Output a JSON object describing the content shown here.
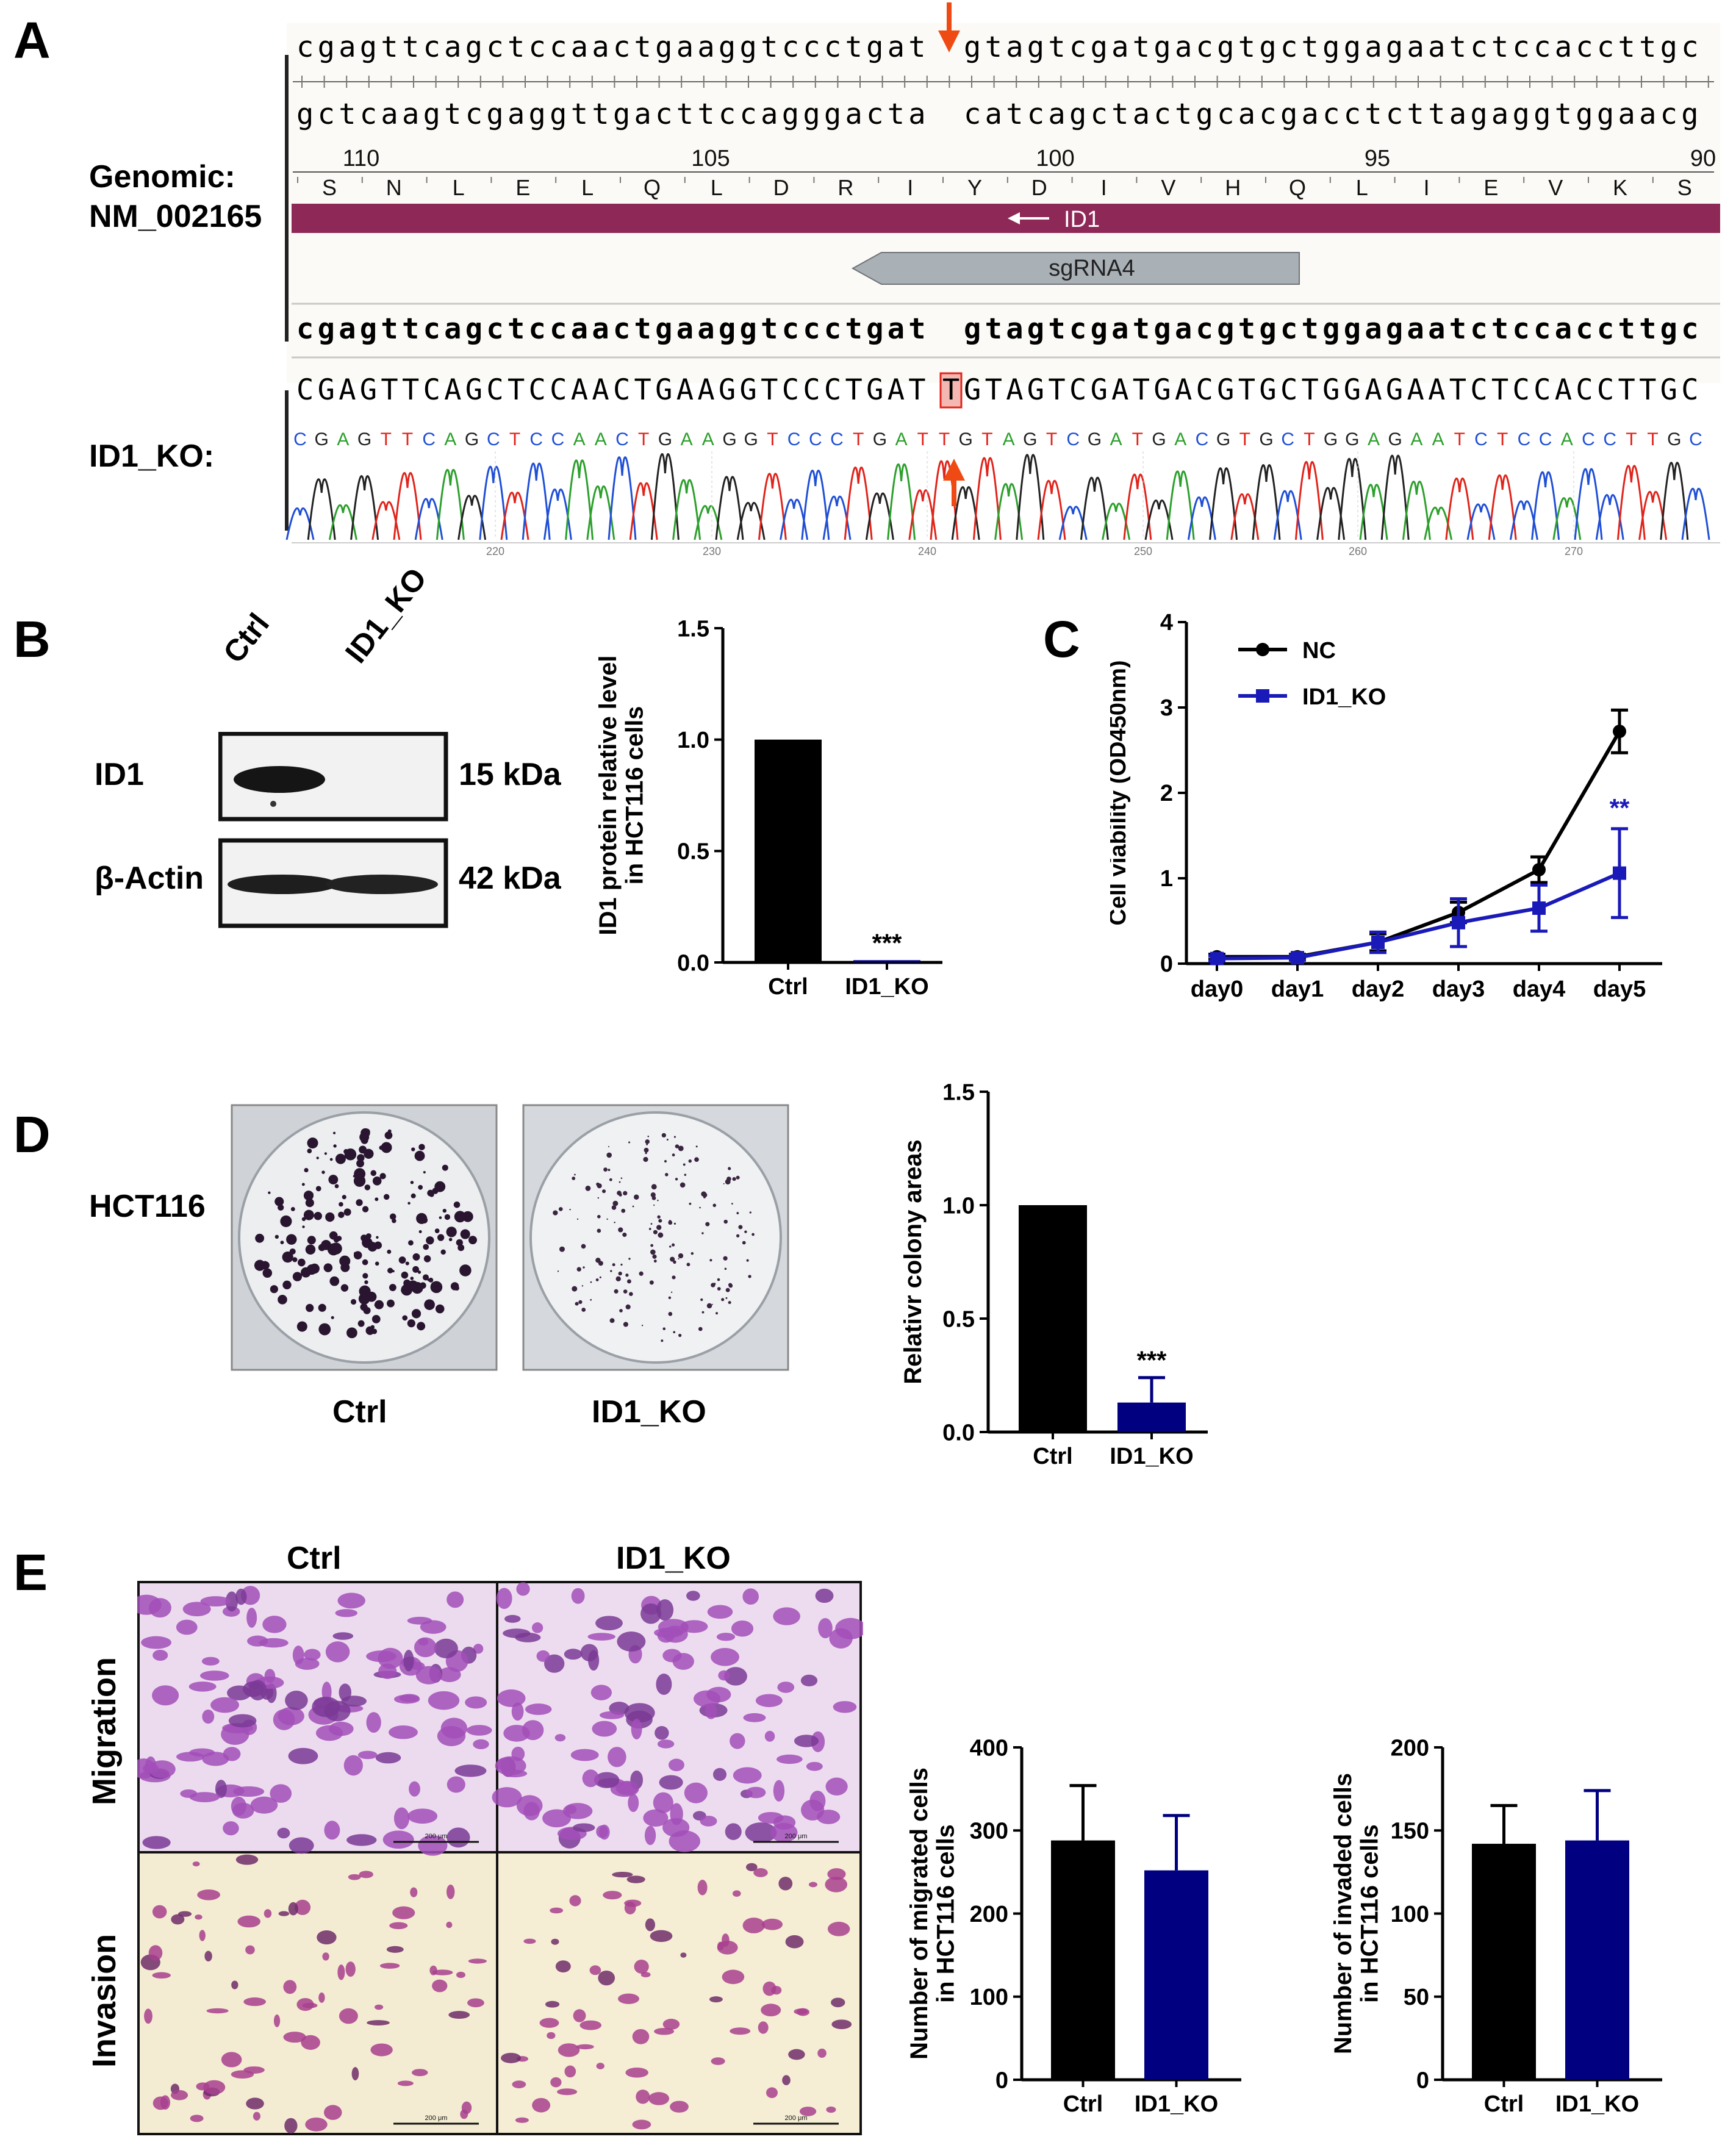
{
  "panels": {
    "a": "A",
    "b": "B",
    "c": "C",
    "d": "D",
    "e": "E"
  },
  "panelA": {
    "genomic_label_1": "Genomic:",
    "genomic_label_2": "NM_002165",
    "ko_label": "ID1_KO:",
    "top_seq_left": "cgagttcagctccaactgaaggtccctgat",
    "top_seq_right": "gtagtcgatgacgtgctggagaatctccaccttgc",
    "comp_seq_left": "gctcaagtcgaggttgacttccagggacta",
    "comp_seq_right": "catcagctactgcacgacctcttagaggtggaacg",
    "ruler_numbers": [
      "110",
      "105",
      "100",
      "95",
      "90"
    ],
    "amino_acids": [
      "S",
      "N",
      "L",
      "E",
      "L",
      "Q",
      "L",
      "D",
      "R",
      "I",
      "Y",
      "D",
      "I",
      "V",
      "H",
      "Q",
      "L",
      "I",
      "E",
      "V",
      "K",
      "S"
    ],
    "gene_label": "ID1",
    "sgrna_label": "sgRNA4",
    "ref_seq_left": "cgagttcagctccaactgaaggtccctgat",
    "ref_seq_right": "gtagtcgatgacgtgctggagaatctccaccttgc",
    "ko_seq_left": "CGAGTTCAGCTCCAACTGAAGGTCCCTGAT",
    "ko_inserted": "T",
    "ko_seq_right": "GTAGTCGATGACGTGCTGGAGAATCTCCACCTTGC",
    "trace_letters": "CGAGTTCAGCTCCAACTGAAGGTCCCTGATTGTAGTCGATGACGTGCTGGAGAATCTCCACCTTGC",
    "trace_positions": [
      "220",
      "230",
      "240",
      "250",
      "260",
      "270"
    ],
    "colors": {
      "gene_bar": "#8e2857",
      "sgrna": "#a9b0b6",
      "arrow": "#f04a14",
      "A": "#2ca02c",
      "C": "#1f4fd6",
      "G": "#222222",
      "T": "#e0241b"
    }
  },
  "panelB": {
    "lanes": [
      "Ctrl",
      "ID1_KO"
    ],
    "rows": [
      {
        "protein": "ID1",
        "size": "15 kDa"
      },
      {
        "protein": "β-Actin",
        "size": "42 kDa"
      }
    ]
  },
  "chart_data": [
    {
      "id": "B-bar",
      "type": "bar",
      "ylabel": [
        "ID1 protein relative level",
        "in HCT116 cells"
      ],
      "categories": [
        "Ctrl",
        "ID1_KO"
      ],
      "values": [
        1.0,
        0.01
      ],
      "errors": [
        0,
        0
      ],
      "colors": [
        "#000000",
        "#000080"
      ],
      "ylim": [
        0,
        1.5
      ],
      "yticks": [
        "0.0",
        "0.5",
        "1.0",
        "1.5"
      ],
      "annotations": [
        "",
        "***"
      ]
    },
    {
      "id": "C-line",
      "type": "line",
      "ylabel": "Cell viability (OD450nm)",
      "x": [
        "day0",
        "day1",
        "day2",
        "day3",
        "day4",
        "day5"
      ],
      "series": [
        {
          "name": "NC",
          "values": [
            0.08,
            0.08,
            0.25,
            0.6,
            1.1,
            2.72
          ],
          "errors": [
            0.03,
            0.03,
            0.1,
            0.12,
            0.15,
            0.25
          ],
          "color": "#000000"
        },
        {
          "name": "ID1_KO",
          "values": [
            0.06,
            0.07,
            0.25,
            0.48,
            0.65,
            1.06
          ],
          "errors": [
            0.03,
            0.03,
            0.12,
            0.28,
            0.27,
            0.52
          ],
          "color": "#1a1ab8"
        }
      ],
      "ylim": [
        0,
        4
      ],
      "yticks": [
        "0",
        "1",
        "2",
        "3",
        "4"
      ],
      "annotation": "**",
      "legend": "top-left"
    },
    {
      "id": "D-bar",
      "type": "bar",
      "ylabel": "Relativr colony areas",
      "categories": [
        "Ctrl",
        "ID1_KO"
      ],
      "values": [
        1.0,
        0.13
      ],
      "errors": [
        0,
        0.11
      ],
      "colors": [
        "#000000",
        "#000080"
      ],
      "ylim": [
        0,
        1.5
      ],
      "yticks": [
        "0.0",
        "0.5",
        "1.0",
        "1.5"
      ],
      "annotations": [
        "",
        "***"
      ]
    },
    {
      "id": "E-mig",
      "type": "bar",
      "ylabel": [
        "Number of migrated cells",
        "in HCT116 cells"
      ],
      "categories": [
        "Ctrl",
        "ID1_KO"
      ],
      "values": [
        288,
        252
      ],
      "errors": [
        66,
        66
      ],
      "colors": [
        "#000000",
        "#000080"
      ],
      "ylim": [
        0,
        400
      ],
      "yticks": [
        "0",
        "100",
        "200",
        "300",
        "400"
      ],
      "annotations": [
        "",
        ""
      ]
    },
    {
      "id": "E-inv",
      "type": "bar",
      "ylabel": [
        "Number of  invaded cells",
        "in HCT116 cells"
      ],
      "categories": [
        "Ctrl",
        "ID1_KO"
      ],
      "values": [
        142,
        144
      ],
      "errors": [
        23,
        30
      ],
      "colors": [
        "#000000",
        "#000080"
      ],
      "ylim": [
        0,
        200
      ],
      "yticks": [
        "0",
        "50",
        "100",
        "150",
        "200"
      ],
      "annotations": [
        "",
        ""
      ]
    }
  ],
  "panelD": {
    "row_label": "HCT116",
    "captions": [
      "Ctrl",
      "ID1_KO"
    ]
  },
  "panelE": {
    "col_labels": [
      "Ctrl",
      "ID1_KO"
    ],
    "row_labels": [
      "Migration",
      "Invasion"
    ],
    "scale_text": "200 μm"
  }
}
